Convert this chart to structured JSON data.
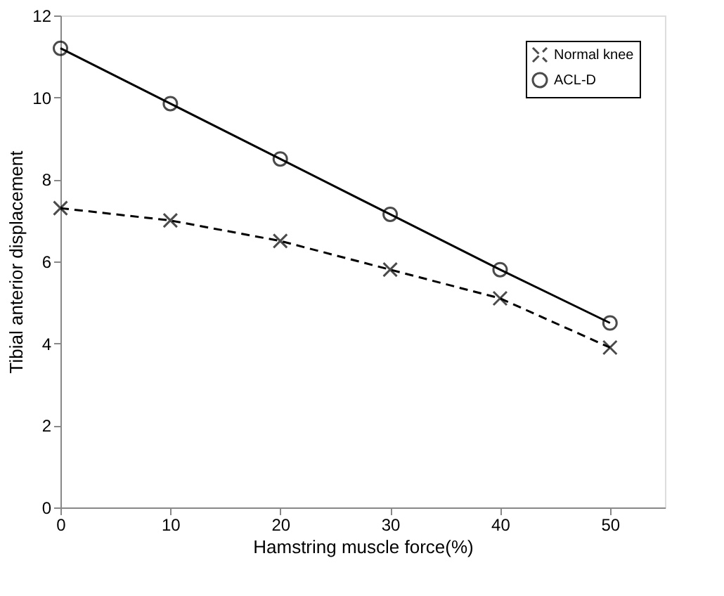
{
  "chart_data": {
    "type": "line",
    "xlabel": "Hamstring muscle force(%)",
    "ylabel": "Tibial anterior displacement",
    "x": [
      0,
      10,
      20,
      30,
      40,
      50
    ],
    "series": [
      {
        "name": "Normal knee",
        "color": "#000000",
        "values": [
          7.3,
          7.0,
          6.5,
          5.8,
          5.1,
          3.9
        ],
        "marker": "cross",
        "line_style": "dashed"
      },
      {
        "name": "ACL-D",
        "color": "#000000",
        "values": [
          11.2,
          9.85,
          8.5,
          7.15,
          5.8,
          4.5
        ],
        "marker": "circle",
        "line_style": "solid"
      }
    ],
    "xlim": [
      0,
      55
    ],
    "xticks": [
      0,
      10,
      20,
      30,
      40,
      50
    ],
    "ylim": [
      0,
      12
    ],
    "yticks": [
      0,
      2,
      4,
      6,
      8,
      10,
      12
    ],
    "grid": false,
    "legend": "top right"
  }
}
